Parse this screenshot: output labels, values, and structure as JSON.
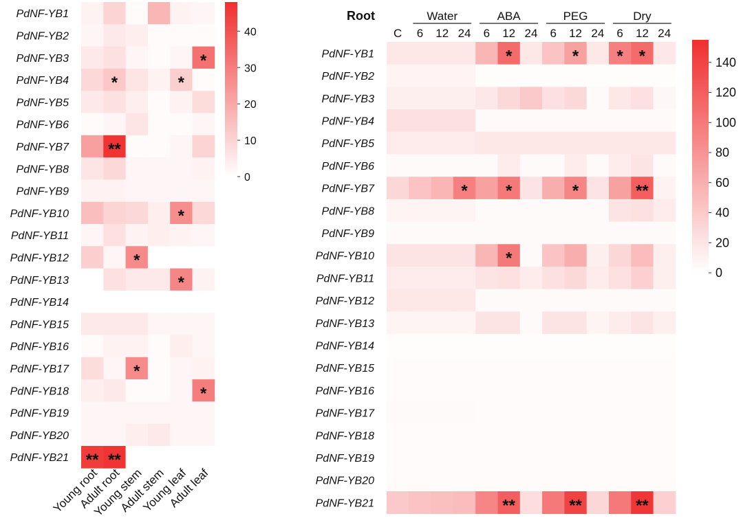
{
  "chart_data": [
    {
      "type": "heatmap",
      "rows": [
        "PdNF-YB1",
        "PdNF-YB2",
        "PdNF-YB3",
        "PdNF-YB4",
        "PdNF-YB5",
        "PdNF-YB6",
        "PdNF-YB7",
        "PdNF-YB8",
        "PdNF-YB9",
        "PdNF-YB10",
        "PdNF-YB11",
        "PdNF-YB12",
        "PdNF-YB13",
        "PdNF-YB14",
        "PdNF-YB15",
        "PdNF-YB16",
        "PdNF-YB17",
        "PdNF-YB18",
        "PdNF-YB19",
        "PdNF-YB20",
        "PdNF-YB21"
      ],
      "columns": [
        "Young root",
        "Adult root",
        "Young stem",
        "Adult stem",
        "Young leaf",
        "Adult leaf"
      ],
      "values": [
        [
          3,
          10,
          1,
          17,
          3,
          2
        ],
        [
          2,
          5,
          4,
          1,
          1,
          1
        ],
        [
          5,
          7,
          2,
          1,
          2,
          33
        ],
        [
          9,
          13,
          6,
          3,
          11,
          1
        ],
        [
          5,
          7,
          4,
          1,
          3,
          8
        ],
        [
          1,
          2,
          6,
          1,
          1,
          2
        ],
        [
          22,
          47,
          1,
          1,
          2,
          10
        ],
        [
          6,
          9,
          2,
          2,
          2,
          3
        ],
        [
          3,
          3,
          2,
          2,
          2,
          2
        ],
        [
          15,
          10,
          9,
          4,
          26,
          9
        ],
        [
          2,
          7,
          3,
          4,
          3,
          2
        ],
        [
          11,
          2,
          27,
          0,
          0,
          0
        ],
        [
          0,
          7,
          5,
          5,
          28,
          3
        ],
        [
          0,
          0,
          0,
          0,
          0,
          0
        ],
        [
          5,
          5,
          5,
          2,
          2,
          2
        ],
        [
          1,
          3,
          3,
          1,
          4,
          2
        ],
        [
          8,
          2,
          27,
          1,
          2,
          3
        ],
        [
          4,
          5,
          1,
          1,
          2,
          30
        ],
        [
          2,
          2,
          2,
          2,
          2,
          2
        ],
        [
          2,
          2,
          4,
          5,
          2,
          2
        ],
        [
          45,
          47,
          0,
          0,
          0,
          0
        ]
      ],
      "significance": [
        [
          "",
          "",
          "",
          "",
          "",
          ""
        ],
        [
          "",
          "",
          "",
          "",
          "",
          ""
        ],
        [
          "",
          "",
          "",
          "",
          "",
          "*"
        ],
        [
          "",
          "*",
          "",
          "",
          "*",
          ""
        ],
        [
          "",
          "",
          "",
          "",
          "",
          ""
        ],
        [
          "",
          "",
          "",
          "",
          "",
          ""
        ],
        [
          "",
          "**",
          "",
          "",
          "",
          ""
        ],
        [
          "",
          "",
          "",
          "",
          "",
          ""
        ],
        [
          "",
          "",
          "",
          "",
          "",
          ""
        ],
        [
          "",
          "",
          "",
          "",
          "*",
          ""
        ],
        [
          "",
          "",
          "",
          "",
          "",
          ""
        ],
        [
          "",
          "",
          "*",
          "",
          "",
          ""
        ],
        [
          "",
          "",
          "",
          "",
          "*",
          ""
        ],
        [
          "",
          "",
          "",
          "",
          "",
          ""
        ],
        [
          "",
          "",
          "",
          "",
          "",
          ""
        ],
        [
          "",
          "",
          "",
          "",
          "",
          ""
        ],
        [
          "",
          "",
          "*",
          "",
          "",
          ""
        ],
        [
          "",
          "",
          "",
          "",
          "",
          "*"
        ],
        [
          "",
          "",
          "",
          "",
          "",
          ""
        ],
        [
          "",
          "",
          "",
          "",
          "",
          ""
        ],
        [
          "**",
          "**",
          "",
          "",
          "",
          ""
        ]
      ],
      "color_scale": {
        "min": 0,
        "max": 48,
        "low_color": "#ffffff",
        "high_color": "#f02f2f",
        "ticks": [
          0,
          10,
          20,
          30,
          40
        ]
      }
    },
    {
      "type": "heatmap",
      "title": "Root",
      "groups": [
        {
          "label": "",
          "columns": [
            "C"
          ]
        },
        {
          "label": "Water",
          "columns": [
            "6",
            "12",
            "24"
          ]
        },
        {
          "label": "ABA",
          "columns": [
            "6",
            "12",
            "24"
          ]
        },
        {
          "label": "PEG",
          "columns": [
            "6",
            "12",
            "24"
          ]
        },
        {
          "label": "Dry",
          "columns": [
            "6",
            "12",
            "24"
          ]
        }
      ],
      "rows": [
        "PdNF-YB1",
        "PdNF-YB2",
        "PdNF-YB3",
        "PdNF-YB4",
        "PdNF-YB5",
        "PdNF-YB6",
        "PdNF-YB7",
        "PdNF-YB8",
        "PdNF-YB9",
        "PdNF-YB10",
        "PdNF-YB11",
        "PdNF-YB12",
        "PdNF-YB13",
        "PdNF-YB14",
        "PdNF-YB15",
        "PdNF-YB16",
        "PdNF-YB17",
        "PdNF-YB18",
        "PdNF-YB19",
        "PdNF-YB20",
        "PdNF-YB21"
      ],
      "values": [
        [
          18,
          18,
          18,
          18,
          55,
          110,
          18,
          45,
          70,
          18,
          95,
          110,
          18
        ],
        [
          8,
          8,
          8,
          8,
          2,
          2,
          2,
          2,
          2,
          2,
          2,
          2,
          2
        ],
        [
          12,
          12,
          12,
          12,
          18,
          28,
          40,
          22,
          28,
          4,
          18,
          22,
          6
        ],
        [
          22,
          22,
          22,
          22,
          4,
          4,
          4,
          4,
          4,
          4,
          4,
          4,
          4
        ],
        [
          15,
          15,
          15,
          15,
          18,
          18,
          18,
          18,
          18,
          18,
          18,
          18,
          18
        ],
        [
          4,
          4,
          4,
          4,
          4,
          14,
          4,
          4,
          14,
          4,
          14,
          20,
          4
        ],
        [
          30,
          45,
          55,
          95,
          70,
          100,
          20,
          60,
          90,
          20,
          70,
          120,
          10
        ],
        [
          8,
          8,
          8,
          8,
          4,
          4,
          4,
          4,
          4,
          4,
          20,
          22,
          14
        ],
        [
          4,
          4,
          4,
          4,
          4,
          4,
          4,
          4,
          4,
          4,
          4,
          4,
          4
        ],
        [
          20,
          20,
          20,
          20,
          55,
          100,
          4,
          45,
          60,
          12,
          30,
          50,
          12
        ],
        [
          14,
          14,
          14,
          14,
          20,
          22,
          14,
          22,
          28,
          14,
          22,
          35,
          12
        ],
        [
          18,
          18,
          18,
          18,
          4,
          4,
          4,
          4,
          4,
          4,
          4,
          4,
          4
        ],
        [
          8,
          8,
          8,
          8,
          20,
          20,
          4,
          20,
          20,
          8,
          14,
          20,
          12
        ],
        [
          2,
          2,
          2,
          2,
          2,
          2,
          2,
          2,
          2,
          2,
          2,
          2,
          2
        ],
        [
          3,
          3,
          3,
          3,
          3,
          3,
          3,
          3,
          3,
          3,
          3,
          3,
          3
        ],
        [
          3,
          3,
          3,
          3,
          3,
          3,
          3,
          3,
          3,
          3,
          3,
          3,
          3
        ],
        [
          4,
          4,
          4,
          4,
          3,
          3,
          3,
          3,
          3,
          3,
          3,
          3,
          3
        ],
        [
          3,
          3,
          3,
          3,
          3,
          3,
          3,
          3,
          3,
          3,
          3,
          3,
          3
        ],
        [
          3,
          3,
          3,
          3,
          3,
          3,
          3,
          3,
          3,
          3,
          3,
          3,
          3
        ],
        [
          3,
          3,
          3,
          3,
          3,
          3,
          3,
          3,
          3,
          3,
          3,
          3,
          3
        ],
        [
          40,
          45,
          48,
          50,
          90,
          120,
          25,
          100,
          140,
          30,
          100,
          150,
          35
        ]
      ],
      "significance": [
        [
          "",
          "",
          "",
          "",
          "",
          "*",
          "",
          "",
          "*",
          "",
          "*",
          "*",
          ""
        ],
        [
          "",
          "",
          "",
          "",
          "",
          "",
          "",
          "",
          "",
          "",
          "",
          "",
          ""
        ],
        [
          "",
          "",
          "",
          "",
          "",
          "",
          "",
          "",
          "",
          "",
          "",
          "",
          ""
        ],
        [
          "",
          "",
          "",
          "",
          "",
          "",
          "",
          "",
          "",
          "",
          "",
          "",
          ""
        ],
        [
          "",
          "",
          "",
          "",
          "",
          "",
          "",
          "",
          "",
          "",
          "",
          "",
          ""
        ],
        [
          "",
          "",
          "",
          "",
          "",
          "",
          "",
          "",
          "",
          "",
          "",
          "",
          ""
        ],
        [
          "",
          "",
          "",
          "*",
          "",
          "*",
          "",
          "",
          "*",
          "",
          "",
          "**",
          ""
        ],
        [
          "",
          "",
          "",
          "",
          "",
          "",
          "",
          "",
          "",
          "",
          "",
          "",
          ""
        ],
        [
          "",
          "",
          "",
          "",
          "",
          "",
          "",
          "",
          "",
          "",
          "",
          "",
          ""
        ],
        [
          "",
          "",
          "",
          "",
          "",
          "*",
          "",
          "",
          "",
          "",
          "",
          "",
          ""
        ],
        [
          "",
          "",
          "",
          "",
          "",
          "",
          "",
          "",
          "",
          "",
          "",
          "",
          ""
        ],
        [
          "",
          "",
          "",
          "",
          "",
          "",
          "",
          "",
          "",
          "",
          "",
          "",
          ""
        ],
        [
          "",
          "",
          "",
          "",
          "",
          "",
          "",
          "",
          "",
          "",
          "",
          "",
          ""
        ],
        [
          "",
          "",
          "",
          "",
          "",
          "",
          "",
          "",
          "",
          "",
          "",
          "",
          ""
        ],
        [
          "",
          "",
          "",
          "",
          "",
          "",
          "",
          "",
          "",
          "",
          "",
          "",
          ""
        ],
        [
          "",
          "",
          "",
          "",
          "",
          "",
          "",
          "",
          "",
          "",
          "",
          "",
          ""
        ],
        [
          "",
          "",
          "",
          "",
          "",
          "",
          "",
          "",
          "",
          "",
          "",
          "",
          ""
        ],
        [
          "",
          "",
          "",
          "",
          "",
          "",
          "",
          "",
          "",
          "",
          "",
          "",
          ""
        ],
        [
          "",
          "",
          "",
          "",
          "",
          "",
          "",
          "",
          "",
          "",
          "",
          "",
          ""
        ],
        [
          "",
          "",
          "",
          "",
          "",
          "",
          "",
          "",
          "",
          "",
          "",
          "",
          ""
        ],
        [
          "",
          "",
          "",
          "",
          "",
          "**",
          "",
          "",
          "**",
          "",
          "",
          "**",
          ""
        ]
      ],
      "color_scale": {
        "min": 0,
        "max": 155,
        "low_color": "#ffffff",
        "high_color": "#f02f2f",
        "ticks": [
          0,
          20,
          40,
          60,
          80,
          100,
          120,
          140
        ]
      }
    }
  ]
}
